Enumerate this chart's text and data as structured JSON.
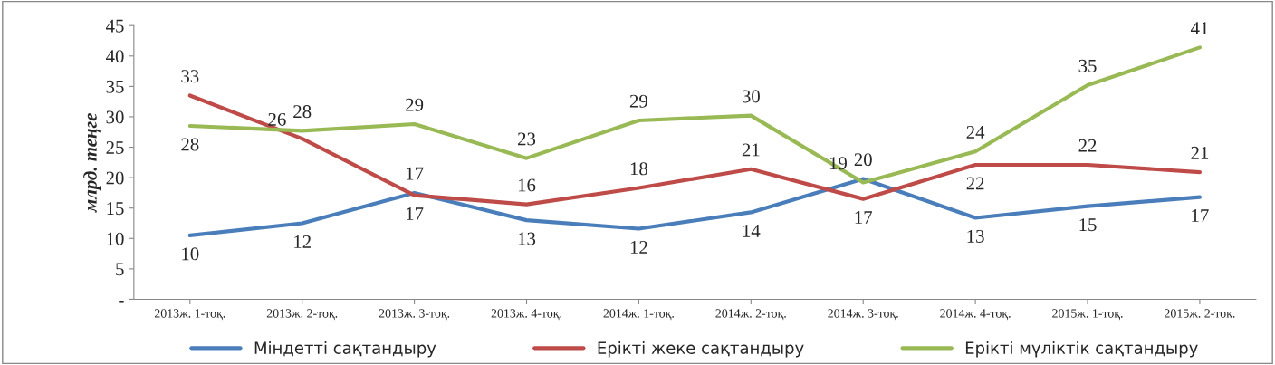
{
  "chart_data": {
    "type": "line",
    "ylabel": "млрд. теңге",
    "categories": [
      "2013ж. 1-тоқ.",
      "2013ж. 2-тоқ.",
      "2013ж. 3-тоқ.",
      "2013ж. 4-тоқ.",
      "2014ж. 1-тоқ.",
      "2014ж. 2-тоқ.",
      "2014ж. 3-тоқ.",
      "2014ж. 4-тоқ.",
      "2015ж. 1-тоқ.",
      "2015ж. 2-тоқ."
    ],
    "series": [
      {
        "name": "Міндетті сақтандыру",
        "color": "#4a7ebb",
        "values": [
          10.5,
          12.5,
          17.5,
          13,
          11.6,
          14.3,
          19.8,
          13.4,
          15.3,
          16.8
        ],
        "value_labels": [
          "10",
          "12",
          "17",
          "13",
          "12",
          "14",
          "20",
          "13",
          "15",
          "17"
        ]
      },
      {
        "name": "Ерікті жеке сақтандыру",
        "color": "#be4b48",
        "values": [
          33.5,
          26.4,
          17.1,
          15.6,
          18.3,
          21.4,
          16.5,
          22.1,
          22.1,
          20.9
        ],
        "value_labels": [
          "33",
          "26",
          "17",
          "16",
          "18",
          "21",
          "17",
          "22",
          "22",
          "21"
        ]
      },
      {
        "name": "Ерікті мүліктік сақтандыру",
        "color": "#98b954",
        "values": [
          28.5,
          27.7,
          28.8,
          23.2,
          29.4,
          30.2,
          19.2,
          24.3,
          35.2,
          41.4
        ],
        "value_labels": [
          "28",
          "28",
          "29",
          "23",
          "29",
          "30",
          "19",
          "24",
          "35",
          "41"
        ]
      }
    ],
    "ylim": [
      0,
      45
    ],
    "yticks": [
      {
        "value": 0,
        "label": "-"
      },
      5,
      10,
      15,
      20,
      25,
      30,
      35,
      40,
      45
    ],
    "grid": false,
    "legend": "bottom",
    "marker": "none",
    "line_style": "solid"
  }
}
